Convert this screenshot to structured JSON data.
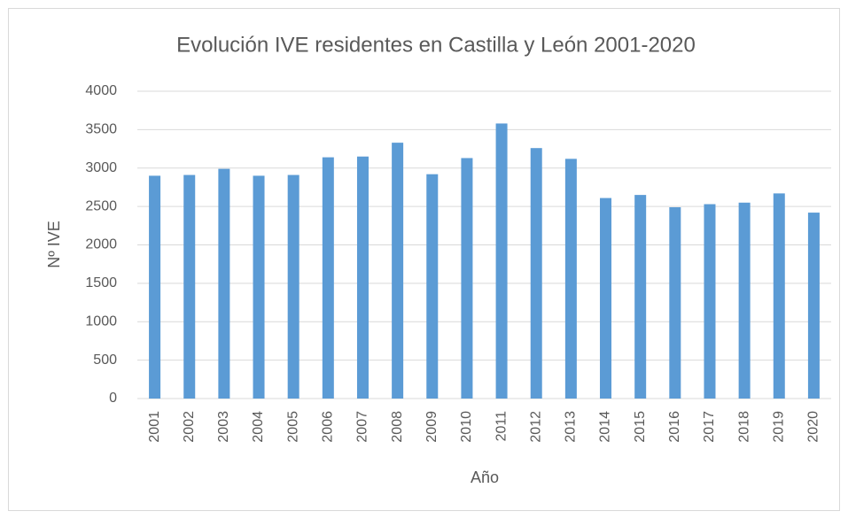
{
  "chart_data": {
    "type": "bar",
    "title": "Evolución IVE residentes en Castilla y León 2001-2020",
    "x_label": "Año",
    "y_label": "Nº IVE",
    "categories": [
      "2001",
      "2002",
      "2003",
      "2004",
      "2005",
      "2006",
      "2007",
      "2008",
      "2009",
      "2010",
      "2011",
      "2012",
      "2013",
      "2014",
      "2015",
      "2016",
      "2017",
      "2018",
      "2019",
      "2020"
    ],
    "values": [
      2900,
      2910,
      2990,
      2900,
      2910,
      3140,
      3150,
      3330,
      2920,
      3130,
      3580,
      3260,
      3120,
      2610,
      2650,
      2490,
      2530,
      2550,
      2670,
      2420
    ],
    "color": "#5b9bd5",
    "ylim": [
      0,
      4000
    ],
    "yticks": [
      0,
      500,
      1000,
      1500,
      2000,
      2500,
      3000,
      3500,
      4000
    ],
    "grid": true
  }
}
